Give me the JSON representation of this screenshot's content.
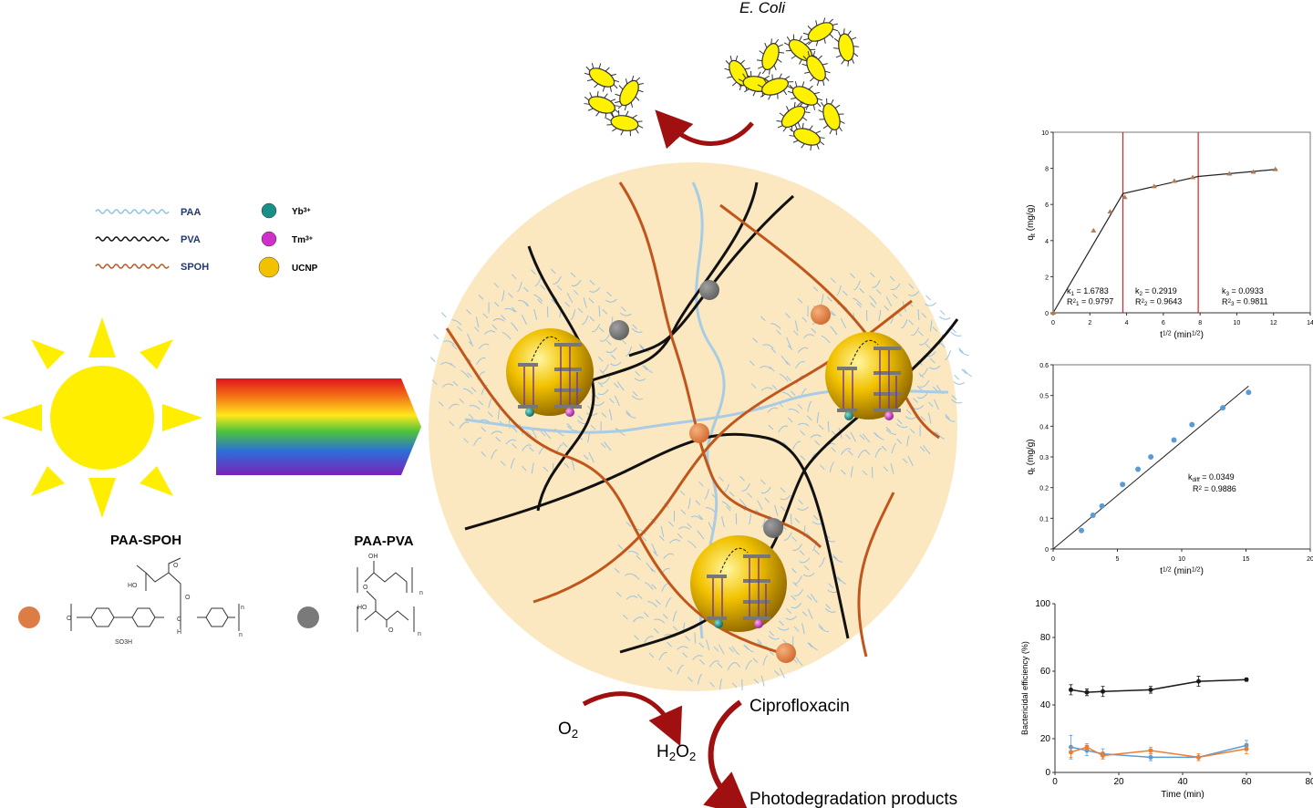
{
  "labels": {
    "e_coli": "E. Coli",
    "paa_spoh": "PAA-SPOH",
    "paa_pva": "PAA-PVA",
    "ciprofloxacin": "Ciprofloxacin",
    "products": "Photodegradation products",
    "o2": [
      {
        "t": "O"
      },
      {
        "t": "2",
        "sub": true
      }
    ],
    "h2o2": [
      {
        "t": "H"
      },
      {
        "t": "2",
        "sub": true
      },
      {
        "t": "O"
      },
      {
        "t": "2",
        "sub": true
      }
    ]
  },
  "legend": {
    "chains": [
      {
        "label": "PAA",
        "color": "#8ec3e6"
      },
      {
        "label": "PVA",
        "color": "#111111"
      },
      {
        "label": "SPOH",
        "color": "#c0561c"
      }
    ],
    "particles": [
      {
        "label": [
          {
            "t": "Yb"
          },
          {
            "t": "3+",
            "sup": true
          }
        ],
        "color": "#1a8f8a"
      },
      {
        "label": [
          {
            "t": "Tm"
          },
          {
            "t": "3+",
            "sup": true
          }
        ],
        "color": "#d12fc9"
      },
      {
        "label": [
          {
            "t": "UCNP"
          }
        ],
        "color": "#f2c200"
      }
    ]
  },
  "structure_text": [
    "HO",
    "O",
    "O",
    "O",
    "n",
    "SO3H",
    "C",
    "H",
    "n",
    "OH",
    "n",
    "HO",
    "O",
    "O",
    "n"
  ],
  "chart_data": [
    {
      "type": "scatter",
      "xlabel": [
        {
          "t": "t"
        },
        {
          "t": "1/2",
          "sup": true
        },
        {
          "t": " (min"
        },
        {
          "t": "1/2",
          "sup": true
        },
        {
          "t": ")"
        }
      ],
      "ylabel": [
        {
          "t": "q"
        },
        {
          "t": "t",
          "sub": true
        },
        {
          "t": " (mg/g)"
        }
      ],
      "x": [
        0,
        2.2,
        3.1,
        3.9,
        5.5,
        6.6,
        7.6,
        9.6,
        10.9,
        12.1
      ],
      "values": [
        0,
        4.55,
        5.6,
        6.4,
        7.0,
        7.3,
        7.5,
        7.7,
        7.8,
        7.95
      ],
      "color": "#b07a55",
      "fit": {
        "x": [
          0,
          3.8,
          7.9,
          12.2
        ],
        "values": [
          0,
          6.6,
          7.55,
          7.95
        ],
        "color": "#222222"
      },
      "breaks": {
        "x": [
          3.8,
          7.9
        ],
        "color": "#e02020"
      },
      "annotations": [
        [
          {
            "t": "k"
          },
          {
            "t": "1",
            "sub": true
          },
          {
            "t": " = 1.6783"
          }
        ],
        [
          {
            "t": "R"
          },
          {
            "t": "2",
            "sup": true
          },
          {
            "t": "1",
            "sub": true
          },
          {
            "t": " = 0.9797"
          }
        ],
        [
          {
            "t": "k"
          },
          {
            "t": "2",
            "sub": true
          },
          {
            "t": " = 0.2919"
          }
        ],
        [
          {
            "t": "R"
          },
          {
            "t": "2",
            "sup": true
          },
          {
            "t": "2",
            "sub": true
          },
          {
            "t": " = 0.9643"
          }
        ],
        [
          {
            "t": "k"
          },
          {
            "t": "3",
            "sub": true
          },
          {
            "t": " = 0.0933"
          }
        ],
        [
          {
            "t": "R"
          },
          {
            "t": "2",
            "sup": true
          },
          {
            "t": "3",
            "sub": true
          },
          {
            "t": " = 0.9811"
          }
        ]
      ],
      "xlim": [
        0,
        14
      ],
      "xticks": [
        0,
        2,
        4,
        6,
        8,
        10,
        12,
        14
      ],
      "ylim": [
        0,
        10
      ],
      "yticks": [
        0,
        2,
        4,
        6,
        8,
        10
      ],
      "box": true
    },
    {
      "type": "scatter",
      "xlabel": [
        {
          "t": "t"
        },
        {
          "t": "1/2",
          "sup": true
        },
        {
          "t": " (min"
        },
        {
          "t": "1/2",
          "sup": true
        },
        {
          "t": ")"
        }
      ],
      "ylabel": [
        {
          "t": "q"
        },
        {
          "t": "t",
          "sub": true
        },
        {
          "t": " (mg/g)"
        }
      ],
      "x": [
        2.2,
        3.1,
        3.8,
        5.4,
        6.6,
        7.6,
        9.4,
        10.8,
        13.2,
        15.2
      ],
      "values": [
        0.06,
        0.11,
        0.14,
        0.21,
        0.26,
        0.3,
        0.355,
        0.405,
        0.46,
        0.51
      ],
      "color": "#5b9bd5",
      "fit_slope": 0.0349,
      "fit_color": "#222222",
      "annotations": [
        [
          {
            "t": "k"
          },
          {
            "t": "diff",
            "sub": true
          },
          {
            "t": " = 0.0349"
          }
        ],
        [
          {
            "t": "R"
          },
          {
            "t": "2",
            "sup": true
          },
          {
            "t": " = 0.9886"
          }
        ]
      ],
      "xlim": [
        0,
        20
      ],
      "xticks": [
        0,
        5,
        10,
        15,
        20
      ],
      "ylim": [
        0,
        0.6
      ],
      "yticks": [
        0,
        0.1,
        0.2,
        0.3,
        0.4,
        0.5,
        0.6
      ],
      "box": true
    },
    {
      "type": "line",
      "xlabel": [
        {
          "t": "Time (min)"
        }
      ],
      "ylabel": [
        {
          "t": "Bactericidal efficiency (%)"
        }
      ],
      "x": [
        5,
        10,
        15,
        30,
        45,
        60
      ],
      "series": [
        {
          "color": "#1a1a1a",
          "values": [
            49,
            47.5,
            48,
            49,
            54,
            55
          ],
          "errors": [
            3,
            2,
            3,
            2,
            3,
            1
          ]
        },
        {
          "color": "#5b9bd5",
          "values": [
            15,
            13,
            11,
            9,
            9,
            16
          ],
          "errors": [
            7,
            3,
            3,
            2,
            2,
            3
          ]
        },
        {
          "color": "#ed7d31",
          "values": [
            12,
            15,
            10,
            13,
            9,
            14
          ],
          "errors": [
            3,
            2,
            2,
            2,
            2,
            3
          ]
        }
      ],
      "xlim": [
        0,
        80
      ],
      "xticks": [
        0,
        20,
        40,
        60,
        80
      ],
      "ylim": [
        0,
        100
      ],
      "yticks": [
        0,
        20,
        40,
        60,
        80,
        100
      ],
      "box": false
    }
  ]
}
